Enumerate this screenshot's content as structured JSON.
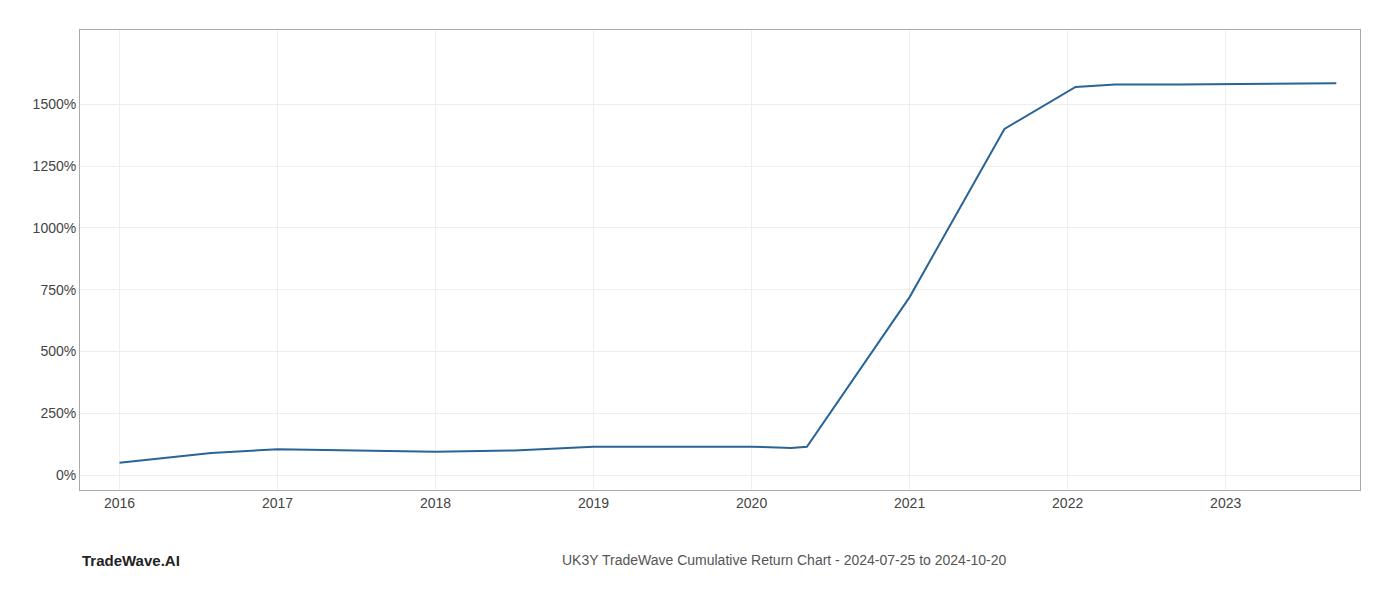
{
  "chart_data": {
    "type": "line",
    "title": "UK3Y TradeWave Cumulative Return Chart - 2024-07-25 to 2024-10-20",
    "annotations": [
      "TradeWave.AI"
    ],
    "x": [
      2016.0,
      2016.58,
      2017.0,
      2017.4,
      2018.0,
      2018.5,
      2019.0,
      2019.5,
      2020.0,
      2020.25,
      2020.35,
      2021.0,
      2021.6,
      2022.05,
      2022.3,
      2022.7,
      2023.0,
      2023.7
    ],
    "values": [
      50,
      90,
      105,
      100,
      95,
      100,
      115,
      115,
      115,
      110,
      115,
      720,
      1400,
      1570,
      1580,
      1580,
      1582,
      1585
    ],
    "color": "#2a6496",
    "xlim": [
      2015.75,
      2023.85
    ],
    "ylim": [
      -60,
      1800
    ],
    "xticks": [
      2016,
      2017,
      2018,
      2019,
      2020,
      2021,
      2022,
      2023
    ],
    "yticks": [
      {
        "value": 0,
        "label": "0%"
      },
      {
        "value": 250,
        "label": "250%"
      },
      {
        "value": 500,
        "label": "500%"
      },
      {
        "value": 750,
        "label": "750%"
      },
      {
        "value": 1000,
        "label": "1000%"
      },
      {
        "value": 1250,
        "label": "1250%"
      },
      {
        "value": 1500,
        "label": "1500%"
      }
    ],
    "grid": true
  }
}
